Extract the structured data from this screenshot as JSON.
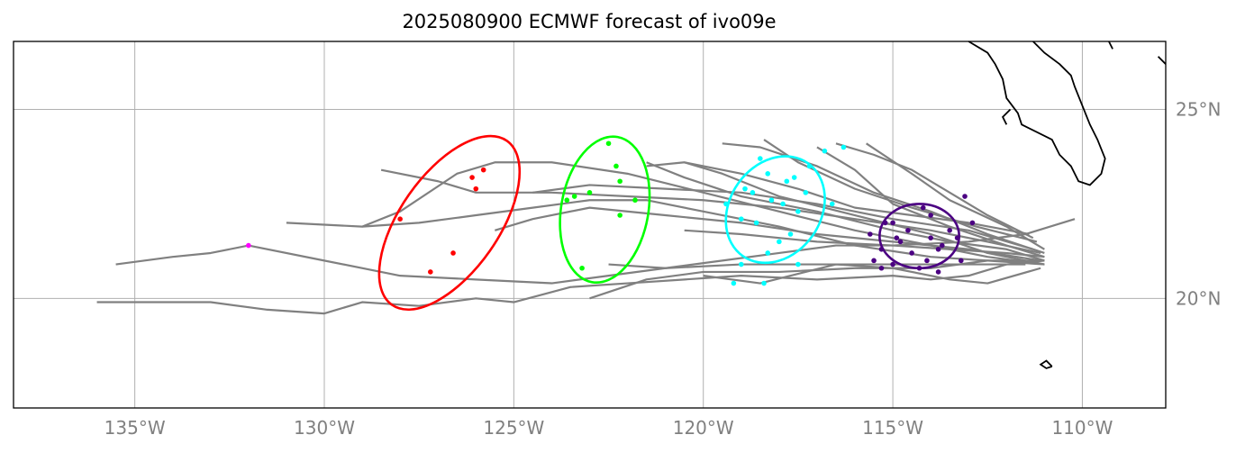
{
  "title": "2025080900 ECMWF forecast of ivo09e",
  "lon_ticks": [
    {
      "lon": -135,
      "label": "135°W"
    },
    {
      "lon": -130,
      "label": "130°W"
    },
    {
      "lon": -125,
      "label": "125°W"
    },
    {
      "lon": -120,
      "label": "120°W"
    },
    {
      "lon": -115,
      "label": "115°W"
    },
    {
      "lon": -110,
      "label": "110°W"
    }
  ],
  "lat_ticks": [
    {
      "lat": 25,
      "label": "25°N"
    },
    {
      "lat": 20,
      "label": "20°N"
    }
  ],
  "extent": {
    "lon": [
      -138.2,
      -107.8
    ],
    "lat": [
      17.1,
      26.8
    ]
  },
  "colors": {
    "tracks": "#808080",
    "grid": "#b0b0b0",
    "coast": "#000000",
    "day1": "#4b0082",
    "day2": "#00ffff",
    "day3": "#00ff00",
    "day4": "#ff0000",
    "day5": "#ff00ff"
  },
  "chart_data": {
    "type": "map-tracks",
    "ensemble_tracks": [
      [
        [
          -111.0,
          21.0
        ],
        [
          -112.0,
          21.3
        ],
        [
          -113.5,
          21.5
        ],
        [
          -115.0,
          21.8
        ],
        [
          -117.0,
          22.3
        ],
        [
          -119.0,
          22.7
        ],
        [
          -120.5,
          23.2
        ],
        [
          -121.5,
          23.6
        ]
      ],
      [
        [
          -111.0,
          20.9
        ],
        [
          -112.5,
          21.1
        ],
        [
          -114.0,
          21.4
        ],
        [
          -116.0,
          21.8
        ],
        [
          -118.0,
          22.3
        ],
        [
          -120.0,
          22.8
        ],
        [
          -122.0,
          23.3
        ],
        [
          -124.0,
          23.6
        ],
        [
          -125.5,
          23.6
        ],
        [
          -126.5,
          23.3
        ],
        [
          -128.0,
          22.3
        ],
        [
          -129.0,
          21.9
        ],
        [
          -131.0,
          22.0
        ]
      ],
      [
        [
          -111.1,
          21.2
        ],
        [
          -112.5,
          21.5
        ],
        [
          -114.0,
          21.8
        ],
        [
          -116.0,
          22.1
        ],
        [
          -118.0,
          22.4
        ],
        [
          -120.0,
          22.6
        ],
        [
          -122.0,
          22.7
        ],
        [
          -124.0,
          22.8
        ],
        [
          -126.0,
          22.8
        ],
        [
          -127.0,
          23.1
        ],
        [
          -128.5,
          23.4
        ]
      ],
      [
        [
          -111.0,
          21.1
        ],
        [
          -112.0,
          21.2
        ],
        [
          -113.5,
          21.3
        ],
        [
          -115.0,
          21.4
        ],
        [
          -116.5,
          21.4
        ],
        [
          -118.0,
          21.2
        ],
        [
          -119.5,
          21.0
        ],
        [
          -121.0,
          20.8
        ],
        [
          -122.5,
          20.6
        ],
        [
          -124.0,
          20.4
        ],
        [
          -126.0,
          20.5
        ],
        [
          -128.0,
          20.6
        ],
        [
          -130.0,
          21.0
        ],
        [
          -132.0,
          21.4
        ],
        [
          -133.0,
          21.2
        ],
        [
          -134.0,
          21.1
        ],
        [
          -135.5,
          20.9
        ]
      ],
      [
        [
          -111.0,
          21.0
        ],
        [
          -112.0,
          20.9
        ],
        [
          -113.0,
          20.6
        ],
        [
          -114.0,
          20.5
        ],
        [
          -115.0,
          20.6
        ],
        [
          -117.0,
          20.5
        ],
        [
          -119.0,
          20.6
        ],
        [
          -120.5,
          20.5
        ],
        [
          -122.0,
          20.4
        ],
        [
          -123.5,
          20.3
        ],
        [
          -125.0,
          19.9
        ],
        [
          -126.0,
          20.0
        ],
        [
          -127.5,
          19.8
        ],
        [
          -129.0,
          19.9
        ],
        [
          -130.0,
          19.6
        ],
        [
          -131.5,
          19.7
        ],
        [
          -133.0,
          19.9
        ],
        [
          -136.0,
          19.9
        ]
      ],
      [
        [
          -110.2,
          22.1
        ],
        [
          -111.5,
          21.7
        ],
        [
          -113.0,
          21.5
        ],
        [
          -115.0,
          21.4
        ],
        [
          -117.0,
          21.5
        ],
        [
          -119.0,
          21.7
        ],
        [
          -120.5,
          21.8
        ]
      ],
      [
        [
          -111.3,
          21.3
        ],
        [
          -113.0,
          21.8
        ],
        [
          -115.0,
          22.1
        ],
        [
          -117.0,
          22.5
        ],
        [
          -119.0,
          22.8
        ],
        [
          -121.0,
          22.9
        ],
        [
          -123.0,
          23.0
        ],
        [
          -124.5,
          22.8
        ]
      ],
      [
        [
          -111.0,
          21.2
        ],
        [
          -112.5,
          21.7
        ],
        [
          -114.0,
          22.3
        ],
        [
          -115.5,
          22.8
        ],
        [
          -117.0,
          23.5
        ],
        [
          -118.5,
          24.0
        ],
        [
          -119.5,
          24.1
        ]
      ],
      [
        [
          -111.0,
          21.1
        ],
        [
          -112.0,
          21.4
        ],
        [
          -113.5,
          21.9
        ],
        [
          -115.0,
          22.5
        ],
        [
          -116.0,
          23.4
        ],
        [
          -117.0,
          24.0
        ]
      ],
      [
        [
          -111.0,
          21.3
        ],
        [
          -112.0,
          21.9
        ],
        [
          -113.5,
          22.6
        ],
        [
          -114.5,
          23.3
        ],
        [
          -115.7,
          24.1
        ]
      ],
      [
        [
          -111.1,
          21.0
        ],
        [
          -113.0,
          21.3
        ],
        [
          -115.0,
          21.5
        ],
        [
          -117.0,
          21.7
        ],
        [
          -119.0,
          22.0
        ],
        [
          -121.0,
          22.2
        ],
        [
          -123.0,
          22.4
        ],
        [
          -124.5,
          22.1
        ],
        [
          -125.5,
          21.8
        ]
      ],
      [
        [
          -111.5,
          20.9
        ],
        [
          -113.0,
          20.9
        ],
        [
          -115.0,
          20.9
        ],
        [
          -117.0,
          20.9
        ],
        [
          -119.0,
          20.9
        ],
        [
          -121.0,
          20.8
        ],
        [
          -122.5,
          20.9
        ]
      ],
      [
        [
          -111.0,
          21.0
        ],
        [
          -112.5,
          21.0
        ],
        [
          -114.0,
          20.8
        ],
        [
          -116.0,
          20.8
        ],
        [
          -118.0,
          20.7
        ],
        [
          -120.0,
          20.7
        ],
        [
          -121.5,
          20.5
        ],
        [
          -123.0,
          20.0
        ]
      ],
      [
        [
          -111.2,
          21.5
        ],
        [
          -112.8,
          21.9
        ],
        [
          -114.5,
          22.4
        ],
        [
          -116.0,
          22.9
        ],
        [
          -117.5,
          23.6
        ],
        [
          -118.4,
          24.2
        ]
      ],
      [
        [
          -111.0,
          20.9
        ],
        [
          -112.5,
          21.0
        ],
        [
          -114.0,
          21.1
        ],
        [
          -116.0,
          21.4
        ],
        [
          -118.0,
          21.9
        ],
        [
          -120.0,
          22.3
        ],
        [
          -121.5,
          22.6
        ],
        [
          -123.0,
          22.6
        ],
        [
          -124.5,
          22.4
        ],
        [
          -126.0,
          22.2
        ],
        [
          -127.5,
          22.0
        ],
        [
          -129.0,
          21.9
        ]
      ],
      [
        [
          -111.4,
          21.7
        ],
        [
          -113.0,
          22.0
        ],
        [
          -114.5,
          22.2
        ],
        [
          -116.0,
          22.4
        ],
        [
          -117.5,
          22.9
        ],
        [
          -119.0,
          23.3
        ],
        [
          -120.5,
          23.6
        ],
        [
          -121.5,
          23.5
        ]
      ],
      [
        [
          -111.1,
          20.8
        ],
        [
          -112.5,
          20.4
        ],
        [
          -113.5,
          20.5
        ],
        [
          -115.0,
          20.8
        ],
        [
          -116.5,
          20.9
        ],
        [
          -118.5,
          20.4
        ],
        [
          -120.0,
          20.6
        ]
      ],
      [
        [
          -111.0,
          20.9
        ],
        [
          -112.5,
          21.2
        ],
        [
          -114.0,
          21.7
        ],
        [
          -116.0,
          22.2
        ],
        [
          -118.0,
          22.7
        ],
        [
          -119.5,
          23.3
        ],
        [
          -120.5,
          23.6
        ]
      ],
      [
        [
          -111.3,
          21.6
        ],
        [
          -112.5,
          22.2
        ],
        [
          -113.5,
          22.8
        ],
        [
          -114.5,
          23.4
        ],
        [
          -115.5,
          23.8
        ],
        [
          -116.5,
          24.1
        ]
      ]
    ],
    "points": [
      {
        "day": 1,
        "color": "#4b0082",
        "coords": [
          [
            -115.0,
            22.0
          ],
          [
            -114.6,
            21.8
          ],
          [
            -114.0,
            22.2
          ],
          [
            -113.3,
            21.6
          ],
          [
            -114.8,
            21.5
          ],
          [
            -115.3,
            21.3
          ],
          [
            -113.8,
            21.3
          ],
          [
            -114.3,
            20.8
          ],
          [
            -115.0,
            20.9
          ],
          [
            -113.2,
            21.0
          ],
          [
            -114.0,
            21.6
          ],
          [
            -115.2,
            22.0
          ],
          [
            -114.5,
            21.2
          ],
          [
            -113.5,
            21.8
          ],
          [
            -114.9,
            21.6
          ],
          [
            -115.6,
            21.7
          ],
          [
            -114.1,
            21.0
          ],
          [
            -113.8,
            20.7
          ],
          [
            -115.3,
            20.8
          ],
          [
            -113.1,
            22.7
          ],
          [
            -114.2,
            22.4
          ],
          [
            -112.9,
            22.0
          ],
          [
            -113.7,
            21.4
          ],
          [
            -115.5,
            21.0
          ]
        ]
      },
      {
        "day": 2,
        "color": "#00ffff",
        "coords": [
          [
            -118.5,
            23.7
          ],
          [
            -117.8,
            23.1
          ],
          [
            -117.2,
            23.5
          ],
          [
            -116.8,
            23.9
          ],
          [
            -118.2,
            22.6
          ],
          [
            -117.5,
            22.3
          ],
          [
            -118.6,
            22.0
          ],
          [
            -117.9,
            22.5
          ],
          [
            -117.3,
            22.8
          ],
          [
            -116.6,
            22.5
          ],
          [
            -118.9,
            22.9
          ],
          [
            -117.6,
            23.2
          ],
          [
            -119.4,
            22.5
          ],
          [
            -119.0,
            22.1
          ],
          [
            -118.0,
            21.5
          ],
          [
            -118.3,
            21.2
          ],
          [
            -117.7,
            21.7
          ],
          [
            -116.3,
            24.0
          ],
          [
            -119.0,
            20.9
          ],
          [
            -117.5,
            20.9
          ],
          [
            -119.2,
            20.4
          ],
          [
            -118.4,
            20.4
          ],
          [
            -118.7,
            22.8
          ],
          [
            -118.3,
            23.3
          ]
        ]
      },
      {
        "day": 3,
        "color": "#00ff00",
        "coords": [
          [
            -122.5,
            24.1
          ],
          [
            -122.3,
            23.5
          ],
          [
            -122.2,
            23.1
          ],
          [
            -123.0,
            22.8
          ],
          [
            -123.4,
            22.7
          ],
          [
            -123.6,
            22.6
          ],
          [
            -121.8,
            22.6
          ],
          [
            -122.2,
            22.2
          ],
          [
            -123.2,
            20.8
          ]
        ]
      },
      {
        "day": 4,
        "color": "#ff0000",
        "coords": [
          [
            -125.8,
            23.4
          ],
          [
            -126.1,
            23.2
          ],
          [
            -126.0,
            22.9
          ],
          [
            -128.0,
            22.1
          ],
          [
            -126.6,
            21.2
          ],
          [
            -127.2,
            20.7
          ]
        ]
      },
      {
        "day": 5,
        "color": "#ff00ff",
        "coords": [
          [
            -132.0,
            21.4
          ]
        ]
      }
    ],
    "ellipses": [
      {
        "day": 1,
        "color": "#4b0082",
        "center": [
          -114.3,
          21.65
        ],
        "width_lon": 2.1,
        "height_lat": 1.7,
        "angle_deg": 0
      },
      {
        "day": 2,
        "color": "#00ffff",
        "center": [
          -118.1,
          22.35
        ],
        "width_lon": 2.4,
        "height_lat": 3.0,
        "angle_deg": 35
      },
      {
        "day": 3,
        "color": "#00ff00",
        "center": [
          -122.6,
          22.35
        ],
        "width_lon": 2.3,
        "height_lat": 3.9,
        "angle_deg": 10
      },
      {
        "day": 4,
        "color": "#ff0000",
        "center": [
          -126.7,
          22.0
        ],
        "width_lon": 2.6,
        "height_lat": 5.3,
        "angle_deg": 35
      }
    ],
    "coastlines": [
      [
        [
          -111.3,
          26.8
        ],
        [
          -111.0,
          26.5
        ],
        [
          -110.6,
          26.2
        ],
        [
          -110.3,
          25.9
        ],
        [
          -110.2,
          25.6
        ],
        [
          -110.0,
          25.1
        ],
        [
          -109.8,
          24.6
        ],
        [
          -109.6,
          24.2
        ],
        [
          -109.4,
          23.7
        ],
        [
          -109.5,
          23.3
        ],
        [
          -109.8,
          23.0
        ],
        [
          -110.1,
          23.1
        ],
        [
          -110.3,
          23.5
        ],
        [
          -110.6,
          23.8
        ],
        [
          -110.8,
          24.2
        ],
        [
          -111.2,
          24.4
        ],
        [
          -111.6,
          24.6
        ],
        [
          -111.7,
          24.9
        ],
        [
          -112.0,
          25.3
        ],
        [
          -112.1,
          25.8
        ],
        [
          -112.3,
          26.2
        ],
        [
          -112.5,
          26.5
        ],
        [
          -113.0,
          26.8
        ]
      ],
      [
        [
          -108.0,
          26.4
        ],
        [
          -107.8,
          26.2
        ]
      ],
      [
        [
          -110.8,
          18.2
        ],
        [
          -110.95,
          18.35
        ],
        [
          -111.1,
          18.25
        ],
        [
          -110.95,
          18.15
        ],
        [
          -110.8,
          18.2
        ]
      ],
      [
        [
          -111.9,
          25.0
        ],
        [
          -112.1,
          24.8
        ],
        [
          -112.0,
          24.6
        ]
      ],
      [
        [
          -109.3,
          26.8
        ],
        [
          -109.2,
          26.6
        ]
      ]
    ]
  }
}
